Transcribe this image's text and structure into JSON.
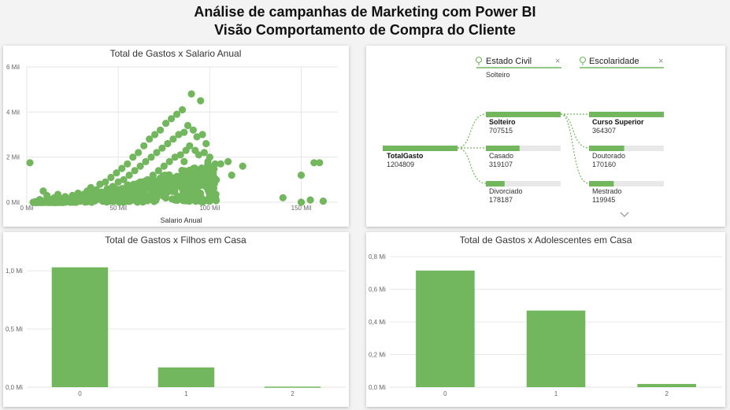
{
  "page": {
    "title_line1": "Análise de campanhas de Marketing com Power BI",
    "title_line2": "Visão Comportamento de Compra do Cliente"
  },
  "colors": {
    "bar": "#72b65d",
    "dot": "#72b65d",
    "track": "#e8e8e8",
    "grid": "#e6e6e6"
  },
  "chart_data": [
    {
      "type": "scatter",
      "title": "Total de Gastos x Salario Anual",
      "xlabel": "Salario Anual",
      "ylabel": "",
      "xlim": [
        0,
        170000
      ],
      "ylim": [
        0,
        6000000
      ],
      "x_ticks": [
        0,
        50000,
        100000,
        150000
      ],
      "x_tick_labels": [
        "0 Mil",
        "50 Mil",
        "100 Mil",
        "150 Mil"
      ],
      "y_ticks": [
        0,
        2000000,
        4000000,
        6000000
      ],
      "y_tick_labels": [
        "0 Mil",
        "2 Mil",
        "4 Mil",
        "6 Mil"
      ],
      "points": [
        [
          1730,
          1750000
        ],
        [
          3500,
          0
        ],
        [
          5000,
          20000
        ],
        [
          7000,
          120000
        ],
        [
          8000,
          80000
        ],
        [
          9000,
          500000
        ],
        [
          10000,
          50000
        ],
        [
          11000,
          300000
        ],
        [
          12000,
          150000
        ],
        [
          14000,
          60000
        ],
        [
          15000,
          200000
        ],
        [
          16000,
          100000
        ],
        [
          17000,
          350000
        ],
        [
          18000,
          50000
        ],
        [
          19000,
          150000
        ],
        [
          20000,
          80000
        ],
        [
          21000,
          250000
        ],
        [
          22000,
          120000
        ],
        [
          23000,
          60000
        ],
        [
          24000,
          180000
        ],
        [
          25000,
          300000
        ],
        [
          26000,
          100000
        ],
        [
          27000,
          200000
        ],
        [
          28000,
          400000
        ],
        [
          29000,
          150000
        ],
        [
          30000,
          250000
        ],
        [
          31000,
          350000
        ],
        [
          32000,
          180000
        ],
        [
          33000,
          500000
        ],
        [
          34000,
          280000
        ],
        [
          35000,
          650000
        ],
        [
          36000,
          400000
        ],
        [
          37000,
          200000
        ],
        [
          38000,
          550000
        ],
        [
          39000,
          300000
        ],
        [
          40000,
          800000
        ],
        [
          41000,
          450000
        ],
        [
          42000,
          250000
        ],
        [
          43000,
          900000
        ],
        [
          44000,
          600000
        ],
        [
          45000,
          350000
        ],
        [
          46000,
          1100000
        ],
        [
          47000,
          700000
        ],
        [
          48000,
          400000
        ],
        [
          49000,
          1300000
        ],
        [
          50000,
          900000
        ],
        [
          51000,
          500000
        ],
        [
          52000,
          1500000
        ],
        [
          53000,
          1000000
        ],
        [
          54000,
          600000
        ],
        [
          55000,
          1700000
        ],
        [
          56000,
          1200000
        ],
        [
          57000,
          700000
        ],
        [
          58000,
          2000000
        ],
        [
          59000,
          1400000
        ],
        [
          60000,
          800000
        ],
        [
          61000,
          2200000
        ],
        [
          62000,
          1600000
        ],
        [
          63000,
          900000
        ],
        [
          64000,
          2500000
        ],
        [
          65000,
          1800000
        ],
        [
          66000,
          1000000
        ],
        [
          67000,
          2800000
        ],
        [
          68000,
          2000000
        ],
        [
          69000,
          1200000
        ],
        [
          70000,
          3000000
        ],
        [
          71000,
          2200000
        ],
        [
          72000,
          1400000
        ],
        [
          73000,
          3200000
        ],
        [
          74000,
          2400000
        ],
        [
          75000,
          1600000
        ],
        [
          76000,
          3500000
        ],
        [
          77000,
          2600000
        ],
        [
          78000,
          1800000
        ],
        [
          79000,
          3700000
        ],
        [
          80000,
          2800000
        ],
        [
          81000,
          2000000
        ],
        [
          82000,
          3900000
        ],
        [
          83000,
          3000000
        ],
        [
          84000,
          2100000
        ],
        [
          85000,
          4100000
        ],
        [
          86000,
          3100000
        ],
        [
          87000,
          2300000
        ],
        [
          88000,
          3400000
        ],
        [
          89000,
          2500000
        ],
        [
          90000,
          4800000
        ],
        [
          91000,
          3200000
        ],
        [
          92000,
          2300000
        ],
        [
          93000,
          2900000
        ],
        [
          94000,
          2100000
        ],
        [
          95000,
          4500000
        ],
        [
          96000,
          3000000
        ],
        [
          97000,
          2200000
        ],
        [
          98000,
          2600000
        ],
        [
          99000,
          1800000
        ],
        [
          100000,
          2000000
        ],
        [
          101000,
          1500000
        ],
        [
          103000,
          1700000
        ],
        [
          106000,
          1700000
        ],
        [
          110000,
          1800000
        ],
        [
          112000,
          1200000
        ],
        [
          118000,
          1600000
        ],
        [
          140000,
          200000
        ],
        [
          150000,
          0
        ],
        [
          155000,
          100000
        ],
        [
          157000,
          1750000
        ],
        [
          160000,
          1750000
        ],
        [
          162000,
          50000
        ],
        [
          150000,
          1200000
        ],
        [
          92000,
          1500000
        ],
        [
          86000,
          1800000
        ]
      ]
    },
    {
      "type": "bar",
      "title": "Total de Gastos x Filhos em Casa",
      "categories": [
        "0",
        "1",
        "2"
      ],
      "values": [
        1030000,
        170000,
        5000
      ],
      "ylim": [
        0,
        1150000
      ],
      "y_ticks": [
        0,
        500000,
        1000000
      ],
      "y_tick_labels": [
        "0,0 Mi",
        "0,5 Mi",
        "1,0 Mi"
      ]
    },
    {
      "type": "bar",
      "title": "Total de Gastos x Adolescentes em Casa",
      "categories": [
        "0",
        "1",
        "2"
      ],
      "values": [
        715000,
        470000,
        20000
      ],
      "ylim": [
        0,
        820000
      ],
      "y_ticks": [
        0,
        200000,
        400000,
        600000,
        800000
      ],
      "y_tick_labels": [
        "0,0 Mi",
        "0,2 Mi",
        "0,4 Mi",
        "0,6 Mi",
        "0,8 Mi"
      ]
    }
  ],
  "decomposition": {
    "filters": [
      {
        "label": "Estado Civil",
        "value": "Solteiro",
        "close": "×"
      },
      {
        "label": "Escolaridade",
        "value": "",
        "close": "×"
      }
    ],
    "root": {
      "label": "TotalGasto",
      "value": "1204809",
      "fraction": 1.0
    },
    "level1": [
      {
        "label": "Solteiro",
        "value": "707515",
        "fraction": 1.0,
        "selected": true
      },
      {
        "label": "Casado",
        "value": "319107",
        "fraction": 0.45,
        "selected": false
      },
      {
        "label": "Divorciado",
        "value": "178187",
        "fraction": 0.25,
        "selected": false
      }
    ],
    "level2": [
      {
        "label": "Curso Superior",
        "value": "364307",
        "fraction": 1.0,
        "selected": true
      },
      {
        "label": "Doutorado",
        "value": "170160",
        "fraction": 0.47,
        "selected": false
      },
      {
        "label": "Mestrado",
        "value": "119945",
        "fraction": 0.33,
        "selected": false
      }
    ]
  }
}
